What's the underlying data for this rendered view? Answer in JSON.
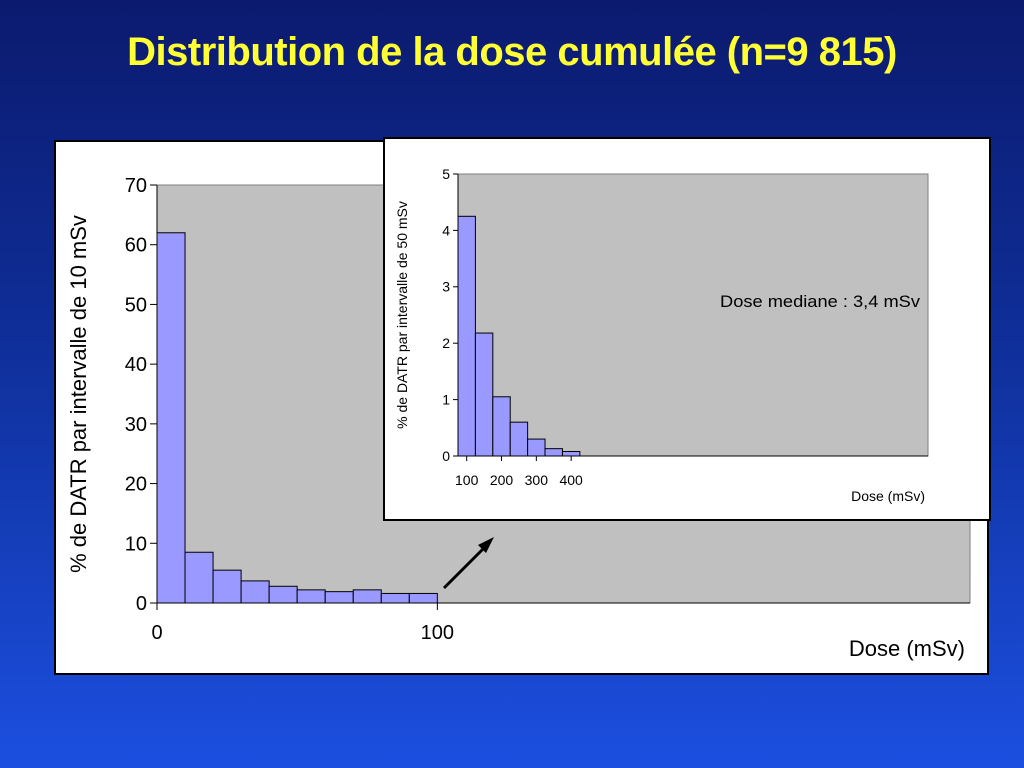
{
  "slide": {
    "title": "Distribution de la dose cumulée (n=9 815)"
  },
  "chart_data": [
    {
      "type": "bar",
      "name": "main-histogram",
      "categories": [
        "0-10",
        "10-20",
        "20-30",
        "30-40",
        "40-50",
        "50-60",
        "60-70",
        "70-80",
        "80-90",
        "90-100"
      ],
      "values": [
        62,
        8.5,
        5.5,
        3.7,
        2.8,
        2.2,
        1.9,
        2.2,
        1.6,
        1.6
      ],
      "xlim": [
        0,
        290
      ],
      "ylim": [
        0,
        70
      ],
      "yticks": [
        0,
        10,
        20,
        30,
        40,
        50,
        60,
        70
      ],
      "xtick_labels": [
        {
          "value": 0,
          "label": "0"
        },
        {
          "value": 100,
          "label": "100"
        }
      ],
      "xlabel": "Dose (mSv)",
      "ylabel": "% de DATR par intervalle de 10 mSv",
      "grid": false,
      "plot_background": "#c0c0c0",
      "bar_color": "#9999ff"
    },
    {
      "type": "bar",
      "name": "inset-histogram",
      "categories": [
        "100-150",
        "150-200",
        "200-250",
        "250-300",
        "300-350",
        "350-400",
        "400-450"
      ],
      "values": [
        4.25,
        2.18,
        1.05,
        0.6,
        0.3,
        0.13,
        0.08
      ],
      "xlim": [
        100,
        1450
      ],
      "ylim": [
        0,
        5
      ],
      "yticks": [
        0,
        1,
        2,
        3,
        4,
        5
      ],
      "xtick_labels": [
        {
          "value": 125,
          "label": "100"
        },
        {
          "value": 225,
          "label": "200"
        },
        {
          "value": 325,
          "label": "300"
        },
        {
          "value": 425,
          "label": "400"
        }
      ],
      "xlabel": "Dose (mSv)",
      "ylabel": "% de DATR par intervalle de 50 mSv",
      "annotation": "Dose mediane : 3,4 mSv",
      "grid": false,
      "plot_background": "#c0c0c0",
      "bar_color": "#9999ff"
    }
  ],
  "colors": {
    "title": "#ffff33",
    "background_top": "#0b1a6e",
    "background_bottom": "#1c4fe0"
  }
}
